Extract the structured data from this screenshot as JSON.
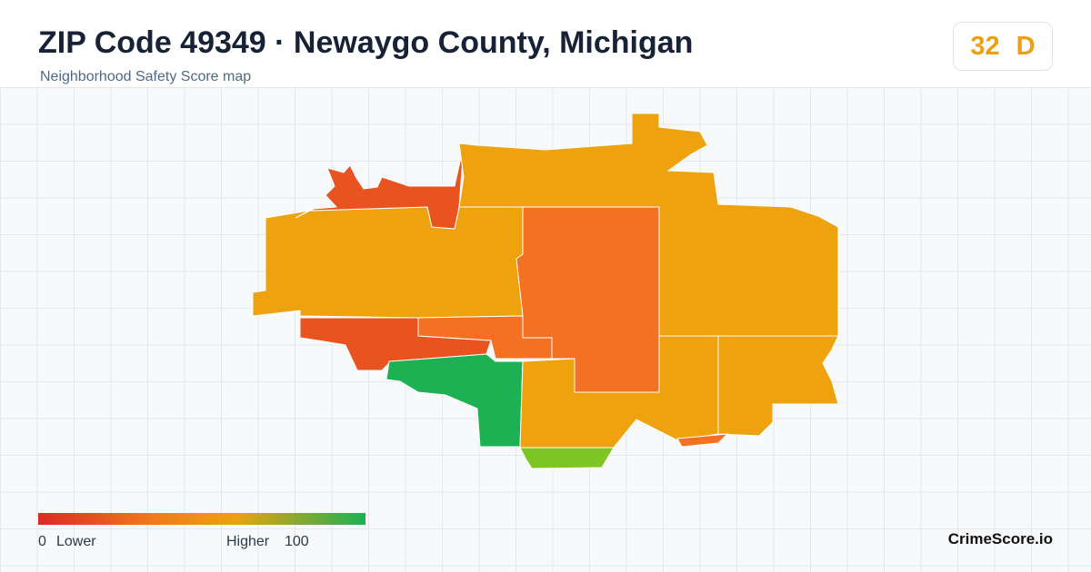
{
  "header": {
    "title": "ZIP Code 49349 · Newaygo County, Michigan",
    "subtitle": "Neighborhood Safety Score map"
  },
  "badge": {
    "score": 32,
    "grade": "D"
  },
  "legend": {
    "min": 0,
    "min_label": "Lower",
    "max_label": "Higher",
    "max": 100
  },
  "brand": "CrimeScore.io"
}
